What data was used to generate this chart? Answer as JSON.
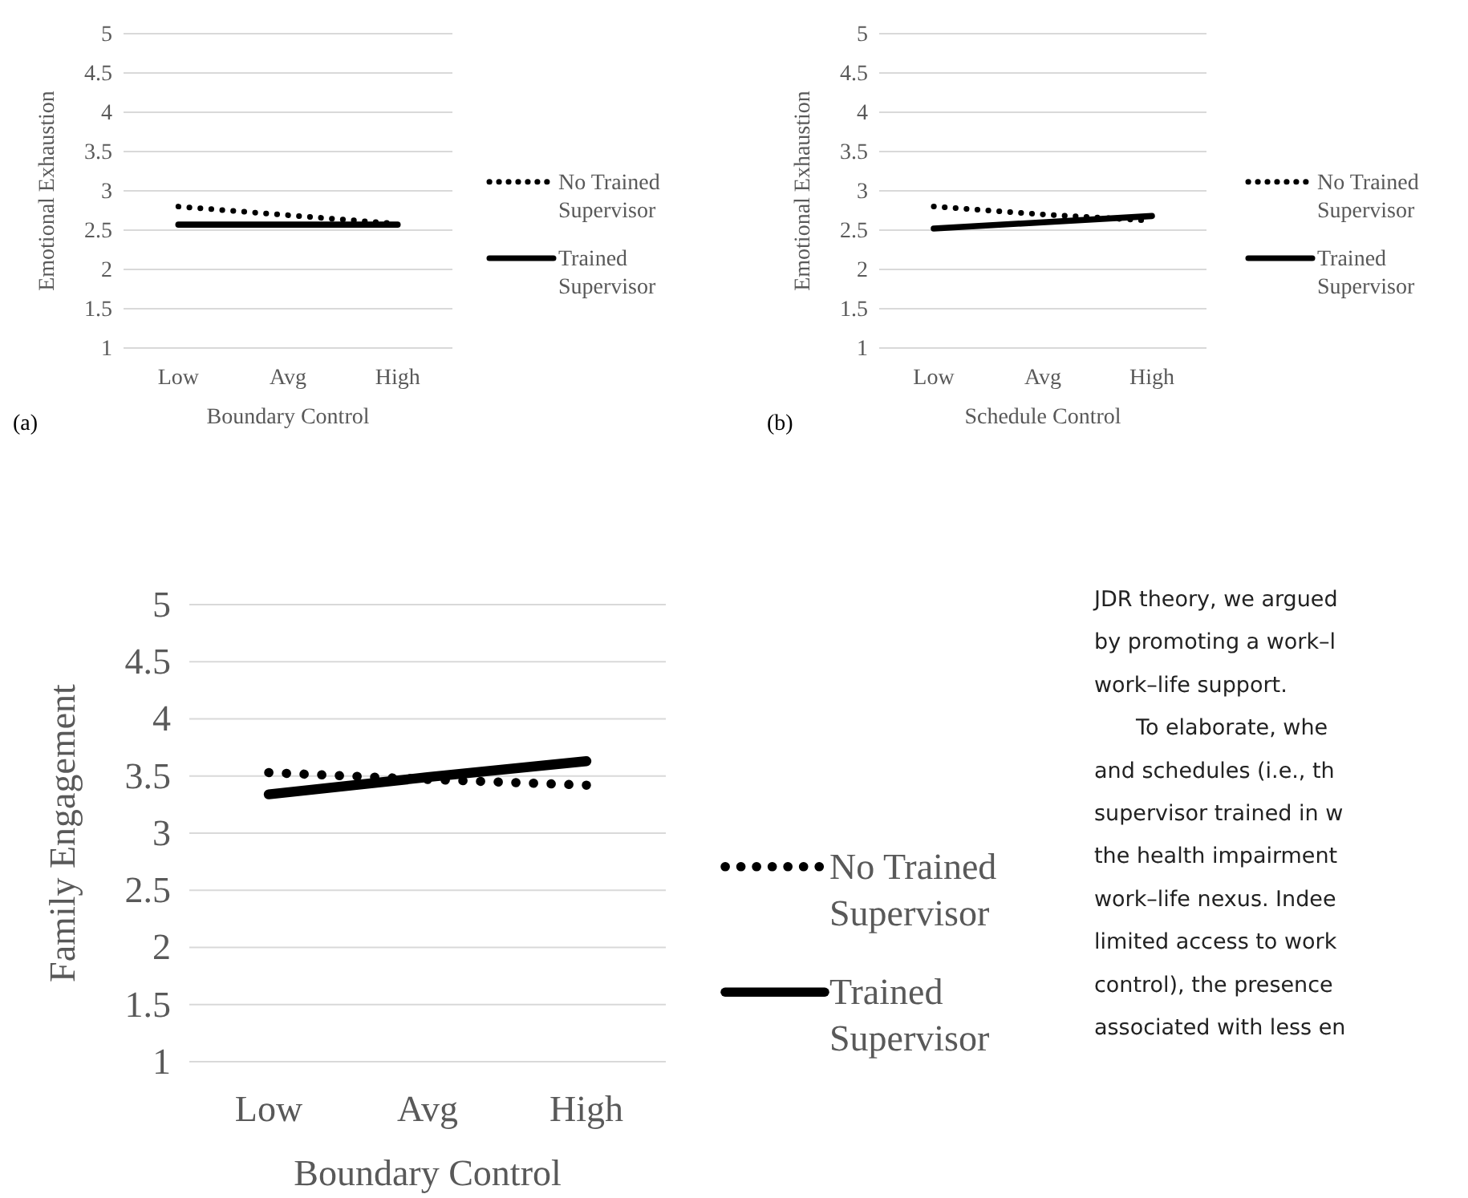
{
  "chart_data": [
    {
      "type": "line",
      "xlabel": "Boundary Control",
      "ylabel": "Emotional Exhaustion",
      "categories": [
        "Low",
        "Avg",
        "High"
      ],
      "ylim": [
        1,
        5
      ],
      "yticks": [
        1,
        1.5,
        2,
        2.5,
        3,
        3.5,
        4,
        4.5,
        5
      ],
      "grid": "y",
      "legend": "right",
      "annotations": [
        "(a)"
      ],
      "series": [
        {
          "name": "No Trained Supervisor",
          "color": "#000000",
          "line_style": "dotted",
          "values": [
            2.8,
            2.69,
            2.58
          ]
        },
        {
          "name": "Trained Supervisor",
          "color": "#000000",
          "line_style": "solid",
          "values": [
            2.57,
            2.57,
            2.57
          ]
        }
      ]
    },
    {
      "type": "line",
      "xlabel": "Schedule Control",
      "ylabel": "Emotional Exhaustion",
      "categories": [
        "Low",
        "Avg",
        "High"
      ],
      "ylim": [
        1,
        5
      ],
      "yticks": [
        1,
        1.5,
        2,
        2.5,
        3,
        3.5,
        4,
        4.5,
        5
      ],
      "grid": "y",
      "legend": "right",
      "annotations": [
        "(b)"
      ],
      "series": [
        {
          "name": "No Trained Supervisor",
          "color": "#000000",
          "line_style": "dotted",
          "values": [
            2.8,
            2.7,
            2.62
          ]
        },
        {
          "name": "Trained Supervisor",
          "color": "#000000",
          "line_style": "solid",
          "values": [
            2.52,
            2.6,
            2.68
          ]
        }
      ]
    },
    {
      "type": "line",
      "xlabel": "Boundary Control",
      "ylabel": "Family Engagement",
      "categories": [
        "Low",
        "Avg",
        "High"
      ],
      "ylim": [
        1,
        5
      ],
      "yticks": [
        1,
        1.5,
        2,
        2.5,
        3,
        3.5,
        4,
        4.5,
        5
      ],
      "grid": "y",
      "legend": "right",
      "series": [
        {
          "name": "No Trained Supervisor",
          "color": "#000000",
          "line_style": "dotted",
          "values": [
            3.53,
            3.47,
            3.42
          ]
        },
        {
          "name": "Trained Supervisor",
          "color": "#000000",
          "line_style": "solid",
          "values": [
            3.34,
            3.49,
            3.63
          ]
        }
      ]
    },
    {
      "type": "other",
      "annotations": [
        "JDR theory, we argued",
        "by promoting a work–l",
        "work–life support.",
        "To elaborate, whe",
        "and schedules (i.e., th",
        "supervisor trained in w",
        "the health impairment",
        "work–life nexus. Indee",
        "limited access to work",
        "control), the presence",
        "associated with less en"
      ]
    }
  ]
}
